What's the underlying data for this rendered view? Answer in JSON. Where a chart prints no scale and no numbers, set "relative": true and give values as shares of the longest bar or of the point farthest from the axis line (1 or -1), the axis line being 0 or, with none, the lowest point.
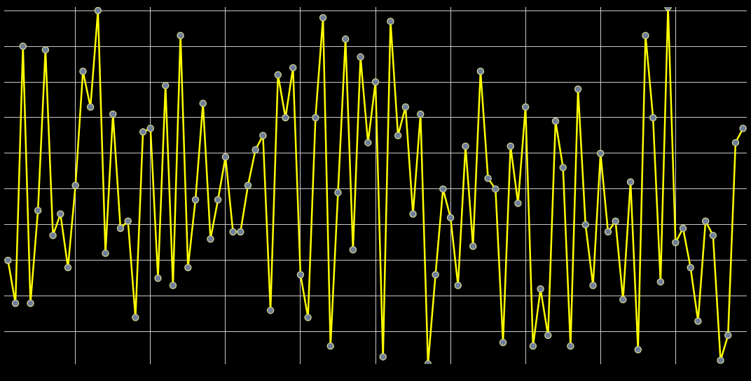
{
  "chart_data": {
    "type": "line",
    "relative": true,
    "grid": true,
    "legend": false,
    "marker": "circle",
    "line_style": "solid",
    "categories": [
      null,
      null,
      null,
      null,
      null,
      null,
      null,
      null,
      null,
      null,
      null,
      null,
      null,
      null,
      null,
      null,
      null,
      null,
      null,
      null,
      null,
      null,
      null,
      null,
      null,
      null,
      null,
      null,
      null,
      null,
      null,
      null,
      null,
      null,
      null,
      null,
      null,
      null,
      null,
      null,
      null,
      null,
      null,
      null,
      null,
      null,
      null,
      null,
      null,
      null,
      null,
      null,
      null,
      null,
      null,
      null,
      null,
      null,
      null,
      null,
      null,
      null,
      null,
      null,
      null,
      null,
      null,
      null,
      null,
      null,
      null,
      null,
      null,
      null,
      null,
      null,
      null,
      null,
      null,
      null,
      null,
      null,
      null,
      null,
      null,
      null,
      null,
      null,
      null,
      null,
      null,
      null,
      null,
      null,
      null,
      null,
      null,
      null,
      null
    ],
    "series": [
      {
        "color": "#ffff00",
        "values": [
          0.29,
          0.17,
          0.89,
          0.17,
          0.43,
          0.88,
          0.36,
          0.42,
          0.27,
          0.5,
          0.82,
          0.72,
          0.99,
          0.31,
          0.7,
          0.38,
          0.4,
          0.13,
          0.65,
          0.66,
          0.24,
          0.78,
          0.22,
          0.92,
          0.27,
          0.46,
          0.73,
          0.35,
          0.46,
          0.58,
          0.37,
          0.37,
          0.5,
          0.6,
          0.64,
          0.15,
          0.81,
          0.69,
          0.83,
          0.25,
          0.13,
          0.69,
          0.97,
          0.05,
          0.48,
          0.91,
          0.32,
          0.86,
          0.62,
          0.79,
          0.02,
          0.96,
          0.64,
          0.72,
          0.42,
          0.7,
          0,
          0.25,
          0.49,
          0.41,
          0.22,
          0.61,
          0.33,
          0.82,
          0.52,
          0.49,
          0.06,
          0.61,
          0.45,
          0.72,
          0.05,
          0.21,
          0.08,
          0.68,
          0.55,
          0.05,
          0.77,
          0.39,
          0.22,
          0.59,
          0.37,
          0.4,
          0.18,
          0.51,
          0.04,
          0.92,
          0.69,
          0.23,
          1,
          0.34,
          0.38,
          0.27,
          0.12,
          0.4,
          0.36,
          0.01,
          0.08,
          0.62,
          0.66
        ]
      }
    ]
  }
}
